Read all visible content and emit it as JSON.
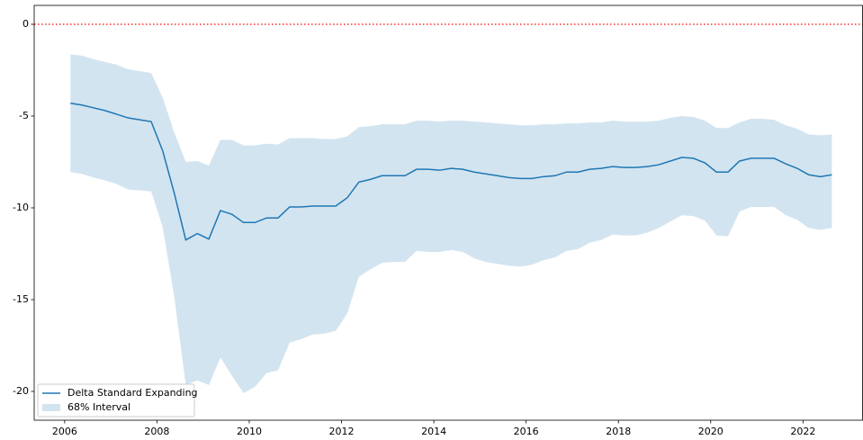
{
  "chart_data": {
    "type": "line",
    "x": [
      2006.125,
      2006.375,
      2006.625,
      2006.875,
      2007.125,
      2007.375,
      2007.625,
      2007.875,
      2008.125,
      2008.375,
      2008.625,
      2008.875,
      2009.125,
      2009.375,
      2009.625,
      2009.875,
      2010.125,
      2010.375,
      2010.625,
      2010.875,
      2011.125,
      2011.375,
      2011.625,
      2011.875,
      2012.125,
      2012.375,
      2012.625,
      2012.875,
      2013.125,
      2013.375,
      2013.625,
      2013.875,
      2014.125,
      2014.375,
      2014.625,
      2014.875,
      2015.125,
      2015.375,
      2015.625,
      2015.875,
      2016.125,
      2016.375,
      2016.625,
      2016.875,
      2017.125,
      2017.375,
      2017.625,
      2017.875,
      2018.125,
      2018.375,
      2018.625,
      2018.875,
      2019.125,
      2019.375,
      2019.625,
      2019.875,
      2020.125,
      2020.375,
      2020.625,
      2020.875,
      2021.125,
      2021.375,
      2021.625,
      2021.875,
      2022.125,
      2022.375,
      2022.625
    ],
    "series": [
      {
        "name": "Delta Standard Expanding",
        "color": "#1f77b4",
        "values": [
          -4.3,
          -4.4,
          -4.55,
          -4.7,
          -4.9,
          -5.1,
          -5.2,
          -5.3,
          -6.9,
          -9.2,
          -11.75,
          -11.4,
          -11.7,
          -10.15,
          -10.35,
          -10.8,
          -10.8,
          -10.55,
          -10.55,
          -9.95,
          -9.95,
          -9.9,
          -9.9,
          -9.9,
          -9.45,
          -8.6,
          -8.45,
          -8.25,
          -8.25,
          -8.25,
          -7.9,
          -7.9,
          -7.95,
          -7.85,
          -7.9,
          -8.05,
          -8.15,
          -8.25,
          -8.35,
          -8.4,
          -8.4,
          -8.3,
          -8.25,
          -8.05,
          -8.05,
          -7.9,
          -7.85,
          -7.75,
          -7.8,
          -7.8,
          -7.75,
          -7.65,
          -7.45,
          -7.25,
          -7.3,
          -7.55,
          -8.05,
          -8.05,
          -7.45,
          -7.3,
          -7.3,
          -7.3,
          -7.6,
          -7.85,
          -8.2,
          -8.3,
          -8.2
        ]
      },
      {
        "name": "68% Interval",
        "color": "#1f77b4",
        "opacity": 0.2,
        "upper": [
          -1.65,
          -1.7,
          -1.9,
          -2.05,
          -2.2,
          -2.45,
          -2.55,
          -2.65,
          -4.0,
          -5.9,
          -7.5,
          -7.45,
          -7.7,
          -6.3,
          -6.3,
          -6.6,
          -6.6,
          -6.5,
          -6.55,
          -6.2,
          -6.2,
          -6.2,
          -6.25,
          -6.25,
          -6.1,
          -5.6,
          -5.55,
          -5.45,
          -5.45,
          -5.45,
          -5.25,
          -5.25,
          -5.3,
          -5.25,
          -5.25,
          -5.3,
          -5.35,
          -5.4,
          -5.45,
          -5.5,
          -5.5,
          -5.45,
          -5.45,
          -5.4,
          -5.4,
          -5.35,
          -5.35,
          -5.25,
          -5.3,
          -5.3,
          -5.3,
          -5.25,
          -5.1,
          -5.0,
          -5.05,
          -5.25,
          -5.65,
          -5.65,
          -5.35,
          -5.15,
          -5.15,
          -5.2,
          -5.5,
          -5.7,
          -6.0,
          -6.05,
          -6.0
        ],
        "lower": [
          -8.05,
          -8.15,
          -8.35,
          -8.5,
          -8.7,
          -9.0,
          -9.05,
          -9.1,
          -11.05,
          -14.85,
          -19.65,
          -19.4,
          -19.65,
          -18.15,
          -19.15,
          -20.1,
          -19.75,
          -19.0,
          -18.85,
          -17.35,
          -17.15,
          -16.9,
          -16.85,
          -16.7,
          -15.75,
          -13.75,
          -13.35,
          -13.0,
          -12.95,
          -12.95,
          -12.35,
          -12.4,
          -12.4,
          -12.3,
          -12.4,
          -12.75,
          -12.95,
          -13.05,
          -13.15,
          -13.2,
          -13.1,
          -12.85,
          -12.7,
          -12.35,
          -12.25,
          -11.9,
          -11.75,
          -11.45,
          -11.5,
          -11.5,
          -11.35,
          -11.1,
          -10.75,
          -10.4,
          -10.45,
          -10.7,
          -11.5,
          -11.55,
          -10.2,
          -9.95,
          -9.95,
          -9.95,
          -10.4,
          -10.65,
          -11.1,
          -11.2,
          -11.1
        ]
      }
    ],
    "hline": {
      "value": 0,
      "color": "#ff0000"
    },
    "xlim": [
      2005.34,
      2023.29
    ],
    "ylim": [
      -21.57,
      1.03
    ],
    "xticks": [
      2006,
      2008,
      2010,
      2012,
      2014,
      2016,
      2018,
      2020,
      2022
    ],
    "yticks": [
      -20,
      -15,
      -10,
      -5,
      0
    ],
    "legend": "lower left"
  }
}
